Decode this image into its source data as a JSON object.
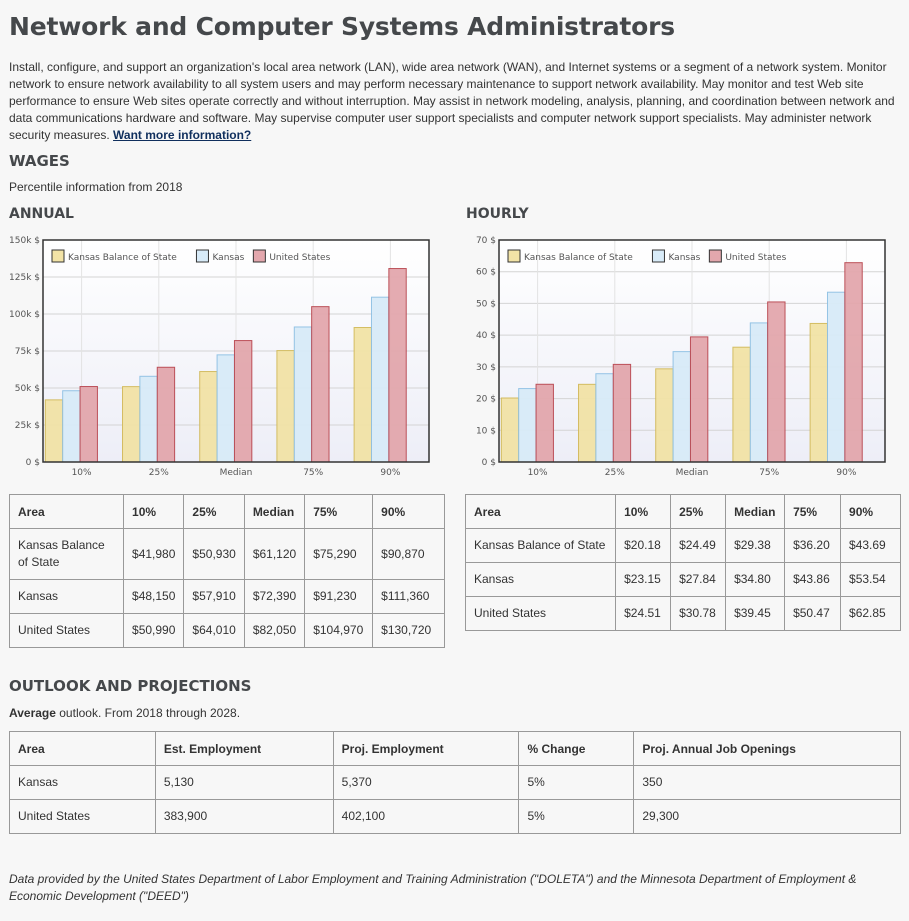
{
  "page": {
    "title": "Network and Computer Systems Administrators",
    "description": "Install, configure, and support an organization's local area network (LAN), wide area network (WAN), and Internet systems or a segment of a network system. Monitor network to ensure network availability to all system users and may perform necessary maintenance to support network availability. May monitor and test Web site performance to ensure Web sites operate correctly and without interruption. May assist in network modeling, analysis, planning, and coordination between network and data communications hardware and software. May supervise computer user support specialists and computer network support specialists. May administer network security measures.",
    "more_link": "Want more information?"
  },
  "wages": {
    "heading": "WAGES",
    "subheading": "Percentile information from 2018",
    "annual_heading": "ANNUAL",
    "hourly_heading": "HOURLY",
    "annual_table": {
      "headers": [
        "Area",
        "10%",
        "25%",
        "Median",
        "75%",
        "90%"
      ],
      "rows": [
        [
          "Kansas Balance of State",
          "$41,980",
          "$50,930",
          "$61,120",
          "$75,290",
          "$90,870"
        ],
        [
          "Kansas",
          "$48,150",
          "$57,910",
          "$72,390",
          "$91,230",
          "$111,360"
        ],
        [
          "United States",
          "$50,990",
          "$64,010",
          "$82,050",
          "$104,970",
          "$130,720"
        ]
      ]
    },
    "hourly_table": {
      "headers": [
        "Area",
        "10%",
        "25%",
        "Median",
        "75%",
        "90%"
      ],
      "rows": [
        [
          "Kansas Balance of State",
          "$20.18",
          "$24.49",
          "$29.38",
          "$36.20",
          "$43.69"
        ],
        [
          "Kansas",
          "$23.15",
          "$27.84",
          "$34.80",
          "$43.86",
          "$53.54"
        ],
        [
          "United States",
          "$24.51",
          "$30.78",
          "$39.45",
          "$50.47",
          "$62.85"
        ]
      ]
    }
  },
  "outlook": {
    "heading": "OUTLOOK AND PROJECTIONS",
    "summary_bold": "Average",
    "summary_rest": " outlook. From 2018 through 2028.",
    "table": {
      "headers": [
        "Area",
        "Est. Employment",
        "Proj. Employment",
        "% Change",
        "Proj. Annual Job Openings"
      ],
      "rows": [
        [
          "Kansas",
          "5,130",
          "5,370",
          "5%",
          "350"
        ],
        [
          "United States",
          "383,900",
          "402,100",
          "5%",
          "29,300"
        ]
      ]
    }
  },
  "footer": "Data provided by the United States Department of Labor Employment and Training Administration (\"DOLETA\") and the Minnesota Department of Employment & Economic Development (\"DEED\")",
  "colors": {
    "kansas_balance_of_state": "#f2e3a6",
    "kansas_balance_of_state_stroke": "#d2ba5a",
    "kansas": "#d8ebf8",
    "kansas_stroke": "#8fc1e4",
    "united_states": "#e3a7ad",
    "united_states_stroke": "#b94750",
    "plot_bg_top": "#ffffff",
    "plot_bg_bottom": "#edeef7",
    "heading": "#45484b",
    "link": "#102f5d"
  },
  "chart_data": [
    {
      "type": "bar",
      "categories": [
        "10%",
        "25%",
        "Median",
        "75%",
        "90%"
      ],
      "series": [
        {
          "name": "Kansas Balance of State",
          "values": [
            41980,
            50930,
            61120,
            75290,
            90870
          ]
        },
        {
          "name": "Kansas",
          "values": [
            48150,
            57910,
            72390,
            91230,
            111360
          ]
        },
        {
          "name": "United States",
          "values": [
            50990,
            64010,
            82050,
            104970,
            130720
          ]
        }
      ],
      "ylim": [
        0,
        150000
      ],
      "yticks": [
        0,
        25000,
        50000,
        75000,
        100000,
        125000,
        150000
      ],
      "ytick_labels": [
        "0 $",
        "25k $",
        "50k $",
        "75k $",
        "100k $",
        "125k $",
        "150k $"
      ],
      "legend": "top-left",
      "grid": true
    },
    {
      "type": "bar",
      "categories": [
        "10%",
        "25%",
        "Median",
        "75%",
        "90%"
      ],
      "series": [
        {
          "name": "Kansas Balance of State",
          "values": [
            20.18,
            24.49,
            29.38,
            36.2,
            43.69
          ]
        },
        {
          "name": "Kansas",
          "values": [
            23.15,
            27.84,
            34.8,
            43.86,
            53.54
          ]
        },
        {
          "name": "United States",
          "values": [
            24.51,
            30.78,
            39.45,
            50.47,
            62.85
          ]
        }
      ],
      "ylim": [
        0,
        70
      ],
      "yticks": [
        0,
        10,
        20,
        30,
        40,
        50,
        60,
        70
      ],
      "ytick_labels": [
        "0 $",
        "10 $",
        "20 $",
        "30 $",
        "40 $",
        "50 $",
        "60 $",
        "70 $"
      ],
      "legend": "top-left",
      "grid": true
    }
  ]
}
